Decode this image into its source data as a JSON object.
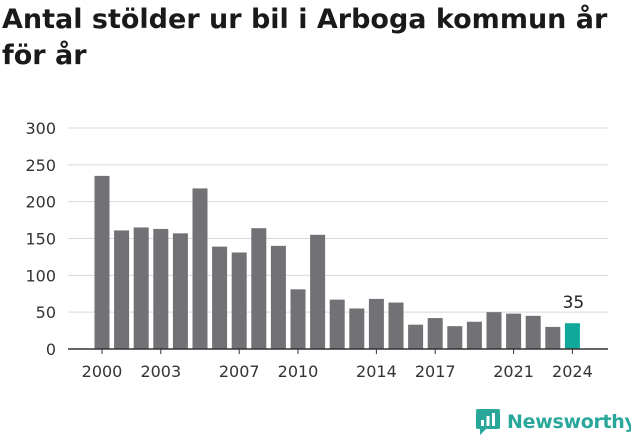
{
  "title": "Antal stölder ur bil i Arboga kommun år för år",
  "brand": {
    "name": "Newsworthy"
  },
  "colors": {
    "bar": "#727176",
    "highlight": "#10a89a",
    "grid": "#d9d9d9",
    "axis": "#333333",
    "text": "#333333",
    "brand": "#2aa79b"
  },
  "chart_data": {
    "type": "bar",
    "title": "Antal stölder ur bil i Arboga kommun år för år",
    "xlabel": "",
    "ylabel": "",
    "categories": [
      "2000",
      "2001",
      "2002",
      "2003",
      "2004",
      "2005",
      "2006",
      "2007",
      "2008",
      "2009",
      "2010",
      "2011",
      "2012",
      "2013",
      "2014",
      "2015",
      "2016",
      "2017",
      "2018",
      "2019",
      "2020",
      "2021",
      "2022",
      "2023",
      "2024"
    ],
    "values": [
      235,
      161,
      165,
      163,
      157,
      218,
      139,
      131,
      164,
      140,
      81,
      155,
      67,
      55,
      68,
      63,
      33,
      42,
      31,
      37,
      50,
      48,
      45,
      30,
      35
    ],
    "ylim": [
      0,
      300
    ],
    "yticks": [
      "0",
      "50",
      "100",
      "150",
      "200",
      "250",
      "300"
    ],
    "xticks": [
      "2000",
      "2003",
      "2007",
      "2010",
      "2014",
      "2017",
      "2021",
      "2024"
    ],
    "highlight": {
      "category": "2024",
      "label": "35"
    },
    "grid": true,
    "legend": "none"
  }
}
